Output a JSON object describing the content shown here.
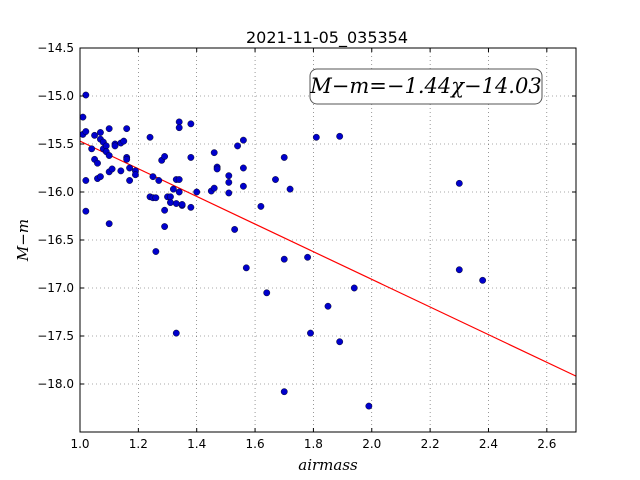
{
  "chart_data": {
    "type": "scatter",
    "title": "2021-11-05_035354",
    "xlabel": "airmass",
    "ylabel": "M−m",
    "xlim": [
      1.0,
      2.7
    ],
    "ylim": [
      -18.5,
      -14.5
    ],
    "x_ticks": [
      "1.0",
      "1.2",
      "1.4",
      "1.6",
      "1.8",
      "2.0",
      "2.2",
      "2.4",
      "2.6"
    ],
    "y_ticks": [
      "−14.5",
      "−15.0",
      "−15.5",
      "−16.0",
      "−16.5",
      "−17.0",
      "−17.5",
      "−18.0"
    ],
    "grid": true,
    "annotation": "M−m=−1.44χ−14.03",
    "fit_line": {
      "slope": -1.44,
      "intercept": -14.03,
      "color": "#ff0000"
    },
    "point_color": "#0000cc",
    "points": [
      [
        1.01,
        -15.22
      ],
      [
        1.02,
        -14.99
      ],
      [
        1.01,
        -15.4
      ],
      [
        1.02,
        -15.37
      ],
      [
        1.02,
        -15.88
      ],
      [
        1.02,
        -16.2
      ],
      [
        1.04,
        -15.55
      ],
      [
        1.05,
        -15.66
      ],
      [
        1.05,
        -15.41
      ],
      [
        1.06,
        -15.7
      ],
      [
        1.06,
        -15.86
      ],
      [
        1.07,
        -15.38
      ],
      [
        1.07,
        -15.45
      ],
      [
        1.07,
        -15.84
      ],
      [
        1.08,
        -15.55
      ],
      [
        1.08,
        -15.48
      ],
      [
        1.09,
        -15.52
      ],
      [
        1.09,
        -15.58
      ],
      [
        1.1,
        -15.34
      ],
      [
        1.1,
        -15.62
      ],
      [
        1.1,
        -15.79
      ],
      [
        1.1,
        -16.33
      ],
      [
        1.11,
        -15.76
      ],
      [
        1.12,
        -15.5
      ],
      [
        1.12,
        -15.52
      ],
      [
        1.14,
        -15.49
      ],
      [
        1.14,
        -15.78
      ],
      [
        1.15,
        -15.47
      ],
      [
        1.16,
        -15.34
      ],
      [
        1.16,
        -15.64
      ],
      [
        1.16,
        -15.66
      ],
      [
        1.17,
        -15.75
      ],
      [
        1.17,
        -15.88
      ],
      [
        1.19,
        -15.78
      ],
      [
        1.19,
        -15.82
      ],
      [
        1.24,
        -16.05
      ],
      [
        1.24,
        -15.43
      ],
      [
        1.25,
        -15.84
      ],
      [
        1.25,
        -16.06
      ],
      [
        1.26,
        -16.06
      ],
      [
        1.26,
        -16.62
      ],
      [
        1.27,
        -15.88
      ],
      [
        1.28,
        -15.67
      ],
      [
        1.29,
        -15.63
      ],
      [
        1.29,
        -16.19
      ],
      [
        1.29,
        -16.36
      ],
      [
        1.3,
        -16.05
      ],
      [
        1.31,
        -16.05
      ],
      [
        1.31,
        -16.11
      ],
      [
        1.32,
        -15.97
      ],
      [
        1.33,
        -15.87
      ],
      [
        1.33,
        -16.12
      ],
      [
        1.33,
        -17.47
      ],
      [
        1.34,
        -15.87
      ],
      [
        1.34,
        -16.0
      ],
      [
        1.34,
        -15.27
      ],
      [
        1.34,
        -15.33
      ],
      [
        1.35,
        -16.14
      ],
      [
        1.35,
        -16.13
      ],
      [
        1.38,
        -15.64
      ],
      [
        1.38,
        -15.29
      ],
      [
        1.38,
        -16.16
      ],
      [
        1.4,
        -16.0
      ],
      [
        1.45,
        -15.99
      ],
      [
        1.46,
        -15.96
      ],
      [
        1.46,
        -15.59
      ],
      [
        1.47,
        -15.74
      ],
      [
        1.47,
        -15.76
      ],
      [
        1.51,
        -15.83
      ],
      [
        1.51,
        -15.9
      ],
      [
        1.51,
        -16.01
      ],
      [
        1.53,
        -16.39
      ],
      [
        1.54,
        -15.52
      ],
      [
        1.56,
        -15.46
      ],
      [
        1.56,
        -15.75
      ],
      [
        1.56,
        -15.94
      ],
      [
        1.57,
        -16.79
      ],
      [
        1.62,
        -16.15
      ],
      [
        1.64,
        -17.05
      ],
      [
        1.67,
        -15.87
      ],
      [
        1.7,
        -15.64
      ],
      [
        1.7,
        -16.7
      ],
      [
        1.7,
        -18.08
      ],
      [
        1.72,
        -15.97
      ],
      [
        1.78,
        -16.68
      ],
      [
        1.79,
        -17.47
      ],
      [
        1.81,
        -15.43
      ],
      [
        1.85,
        -17.19
      ],
      [
        1.89,
        -15.42
      ],
      [
        1.89,
        -17.56
      ],
      [
        1.94,
        -17.0
      ],
      [
        1.99,
        -18.23
      ],
      [
        2.3,
        -16.81
      ],
      [
        2.3,
        -15.91
      ],
      [
        2.38,
        -16.92
      ]
    ]
  }
}
